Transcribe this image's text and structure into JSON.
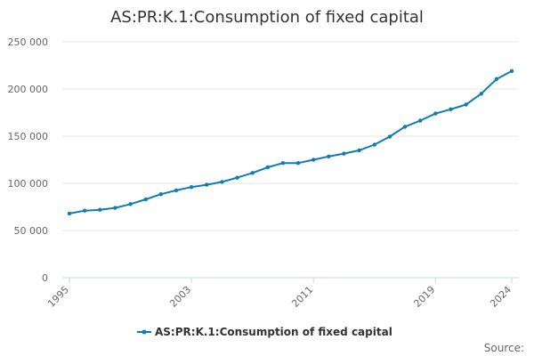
{
  "chart_data": {
    "type": "line",
    "title": "AS:PR:K.1:Consumption of fixed capital",
    "xlabel": "",
    "ylabel": "",
    "ylim": [
      0,
      250000
    ],
    "xlim": [
      1995,
      2024
    ],
    "y_ticks": [
      0,
      50000,
      100000,
      150000,
      200000,
      250000
    ],
    "y_tick_labels": [
      "0",
      "50 000",
      "100 000",
      "150 000",
      "200 000",
      "250 000"
    ],
    "x_ticks": [
      1995,
      2003,
      2011,
      2019,
      2024
    ],
    "x_tick_labels": [
      "1995",
      "2003",
      "2011",
      "2019",
      "2024"
    ],
    "grid": true,
    "legend_position": "bottom-center",
    "series": [
      {
        "name": "AS:PR:K.1:Consumption of fixed capital",
        "color": "#0f7db3",
        "x": [
          1995,
          1996,
          1997,
          1998,
          1999,
          2000,
          2001,
          2002,
          2003,
          2004,
          2005,
          2006,
          2007,
          2008,
          2009,
          2010,
          2011,
          2012,
          2013,
          2014,
          2015,
          2016,
          2017,
          2018,
          2019,
          2020,
          2021,
          2022,
          2023,
          2024
        ],
        "values": [
          68000,
          71000,
          72000,
          74000,
          78000,
          83000,
          88500,
          92500,
          96000,
          98500,
          101500,
          106000,
          111000,
          117000,
          121500,
          121500,
          125000,
          128500,
          131500,
          135000,
          141000,
          149500,
          160000,
          166500,
          174000,
          178500,
          183500,
          195000,
          210500,
          219000
        ]
      }
    ]
  },
  "source_label": "Source:"
}
